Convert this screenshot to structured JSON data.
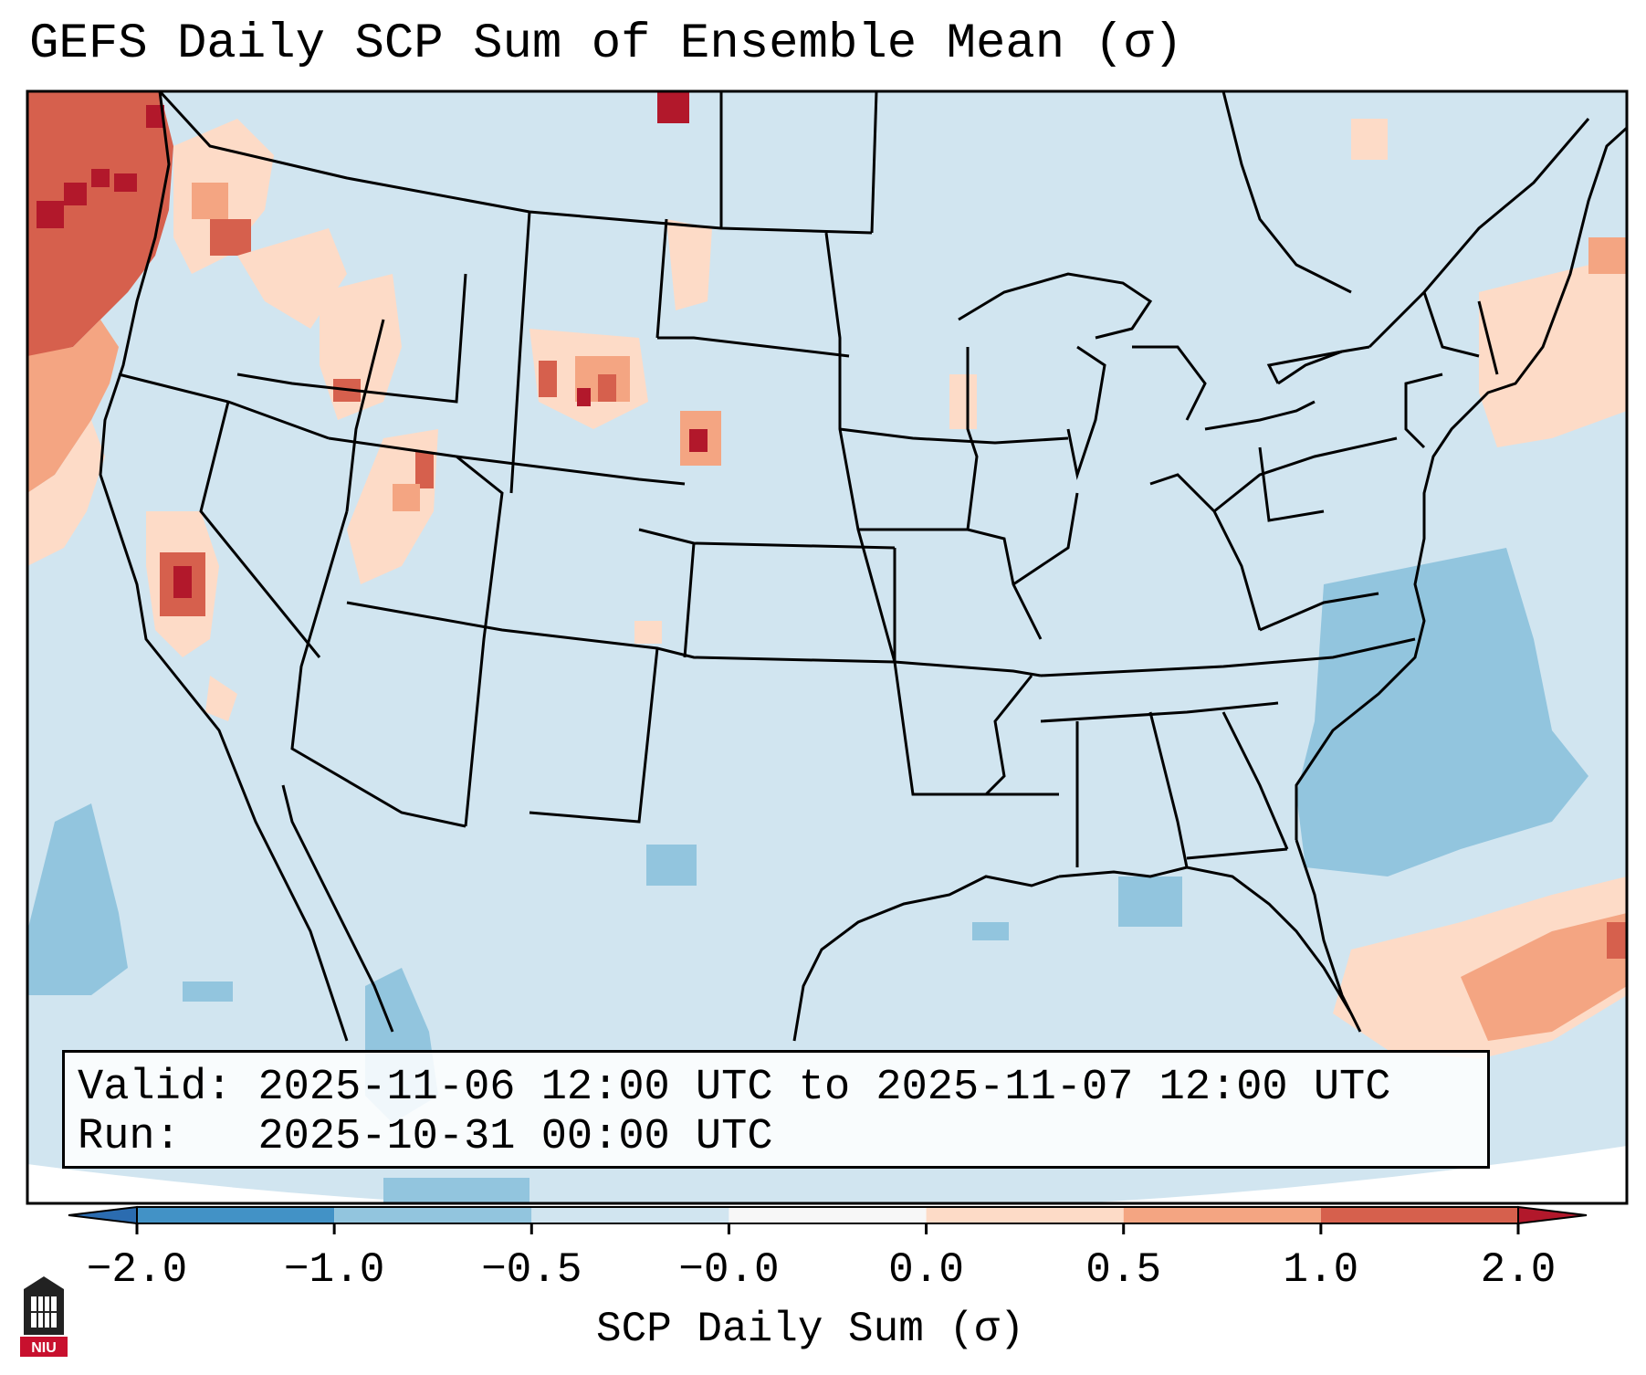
{
  "title": "GEFS Daily SCP Sum of Ensemble Mean (σ)",
  "info_box": {
    "valid_label": "Valid:",
    "valid_value": "2025-11-06 12:00 UTC to 2025-11-07 12:00 UTC",
    "run_label": "Run:",
    "run_value": "2025-10-31 00:00 UTC"
  },
  "colorbar": {
    "label": "SCP Daily Sum (σ)",
    "ticks": [
      "−2.0",
      "−1.0",
      "−0.5",
      "−0.0",
      "0.0",
      "0.5",
      "1.0",
      "2.0"
    ],
    "bins": [
      {
        "range": "< -2.0",
        "color": "#2b6cb0"
      },
      {
        "range": "-2.0 to -1.0",
        "color": "#4292c6"
      },
      {
        "range": "-1.0 to -0.5",
        "color": "#92c5de"
      },
      {
        "range": "-0.5 to -0.0",
        "color": "#d1e5f0"
      },
      {
        "range": "-0.0 to 0.0",
        "color": "#f7f7f7"
      },
      {
        "range": "0.0 to 0.5",
        "color": "#fddbc7"
      },
      {
        "range": "0.5 to 1.0",
        "color": "#f4a582"
      },
      {
        "range": "1.0 to 2.0",
        "color": "#d6604d"
      },
      {
        "range": "> 2.0",
        "color": "#b2182b"
      }
    ]
  },
  "map": {
    "background_color": "#d1e5f0",
    "regions": [
      {
        "name": "Pacific Northwest coast",
        "level": "1.0 to 2.0",
        "color": "#d6604d"
      },
      {
        "name": "Washington / Oregon interior",
        "level": "0.0 to 1.0",
        "color": "#fddbc7"
      },
      {
        "name": "California Central Valley",
        "level": "> 2.0",
        "color": "#b2182b"
      },
      {
        "name": "Idaho / Montana / Wyoming",
        "level": "0.0 to 2.0",
        "color": "#f4a582"
      },
      {
        "name": "Western Atlantic",
        "level": "-1.0 to -0.5",
        "color": "#92c5de"
      },
      {
        "name": "Bahamas / Atlantic southeast",
        "level": "0.5 to 1.0",
        "color": "#f4a582"
      },
      {
        "name": "Eastern Pacific",
        "level": "-1.0 to -0.5",
        "color": "#92c5de"
      },
      {
        "name": "Northeast coast",
        "level": "0.0 to 0.5",
        "color": "#fddbc7"
      }
    ]
  },
  "logo": {
    "text": "NIU"
  }
}
